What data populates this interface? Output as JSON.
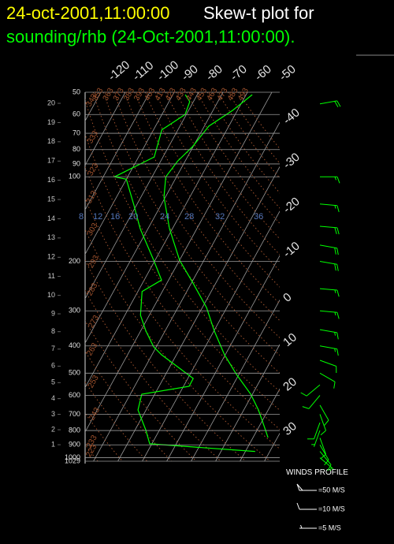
{
  "chart_data": {
    "type": "skewt",
    "title_time": "24-oct-2001,11:00:00",
    "title": "Skew-t plot for",
    "subtitle": "sounding/rhb (24-Oct-2001,11:00:00).",
    "ylim": [
      1029,
      50
    ],
    "ylog": true,
    "yticks": [
      50,
      60,
      70,
      80,
      90,
      100,
      200,
      300,
      400,
      500,
      600,
      700,
      800,
      900,
      1000,
      1029
    ],
    "xticks": [
      -120,
      -110,
      -100,
      -90,
      -80,
      -70,
      -60,
      -50,
      -40,
      -30,
      -20,
      -10,
      0,
      10,
      20,
      30
    ],
    "height_ticks": [
      1,
      2,
      3,
      4,
      5,
      6,
      7,
      8,
      9,
      10,
      11,
      12,
      13,
      14,
      15,
      16,
      17,
      18,
      19,
      20
    ],
    "theta_ticks": [
      223,
      233,
      243,
      253,
      263,
      273,
      283,
      293,
      303,
      313,
      323,
      333,
      343,
      353,
      363,
      373,
      383,
      393,
      403,
      413,
      423,
      433,
      443,
      453,
      463,
      473,
      483,
      493
    ],
    "mixing_ratio_labels": [
      8,
      12,
      16,
      20,
      24,
      28,
      32,
      36
    ],
    "grid": true,
    "series": [
      {
        "color": "#00ff00",
        "x": [
          26.1,
          21.8,
          16.0,
          9.3,
          -1.0,
          -10.3,
          -19.8,
          -28.3,
          -39.1,
          -50.0,
          -61.2,
          -70.6,
          -74.4,
          -73.1,
          -70.2,
          -68.2,
          -62.0,
          -57.5
        ],
        "values": [
          847,
          769,
          676,
          594,
          505,
          430,
          354,
          292,
          240,
          198,
          153,
          118,
          100,
          88,
          78,
          66,
          58,
          51
        ]
      },
      {
        "color": "#00ff00",
        "x": [
          24.0,
          -20.9,
          -25.7,
          -33.3,
          -35.3,
          -17.7,
          -17.8,
          -36.1,
          -41.1,
          -47.8,
          -53.6,
          -58.3,
          -52.9,
          -60.6,
          -73.2,
          -81.1,
          -90.0,
          -95.4,
          -83.6,
          -86.6,
          -80.5,
          -81.5,
          -84.9
        ],
        "values": [
          950,
          892,
          795,
          676,
          594,
          557,
          522,
          430,
          403,
          354,
          311,
          256,
          233,
          198,
          153,
          126,
          102,
          100,
          85,
          68,
          60,
          54,
          51
        ]
      }
    ],
    "winds": {
      "title": "WINDS PROFILE",
      "color": "#00ff00",
      "pressure": [
        55,
        100,
        125,
        150,
        175,
        200,
        250,
        300,
        350,
        400,
        450,
        500,
        550,
        600,
        650,
        700,
        750,
        800,
        850,
        900,
        950,
        1000
      ],
      "speed": [
        20,
        15,
        15,
        20,
        20,
        20,
        15,
        15,
        15,
        15,
        10,
        10,
        10,
        10,
        10,
        10,
        10,
        5,
        10,
        10,
        10,
        5
      ],
      "direction": [
        80,
        90,
        95,
        95,
        100,
        100,
        95,
        95,
        100,
        100,
        110,
        120,
        230,
        220,
        150,
        160,
        200,
        200,
        160,
        150,
        140,
        130
      ],
      "legend": [
        {
          "value": 50,
          "label": "=50 M/S"
        },
        {
          "value": 10,
          "label": "=10 M/S"
        },
        {
          "value": 5,
          "label": "=5 M/S"
        }
      ]
    }
  }
}
